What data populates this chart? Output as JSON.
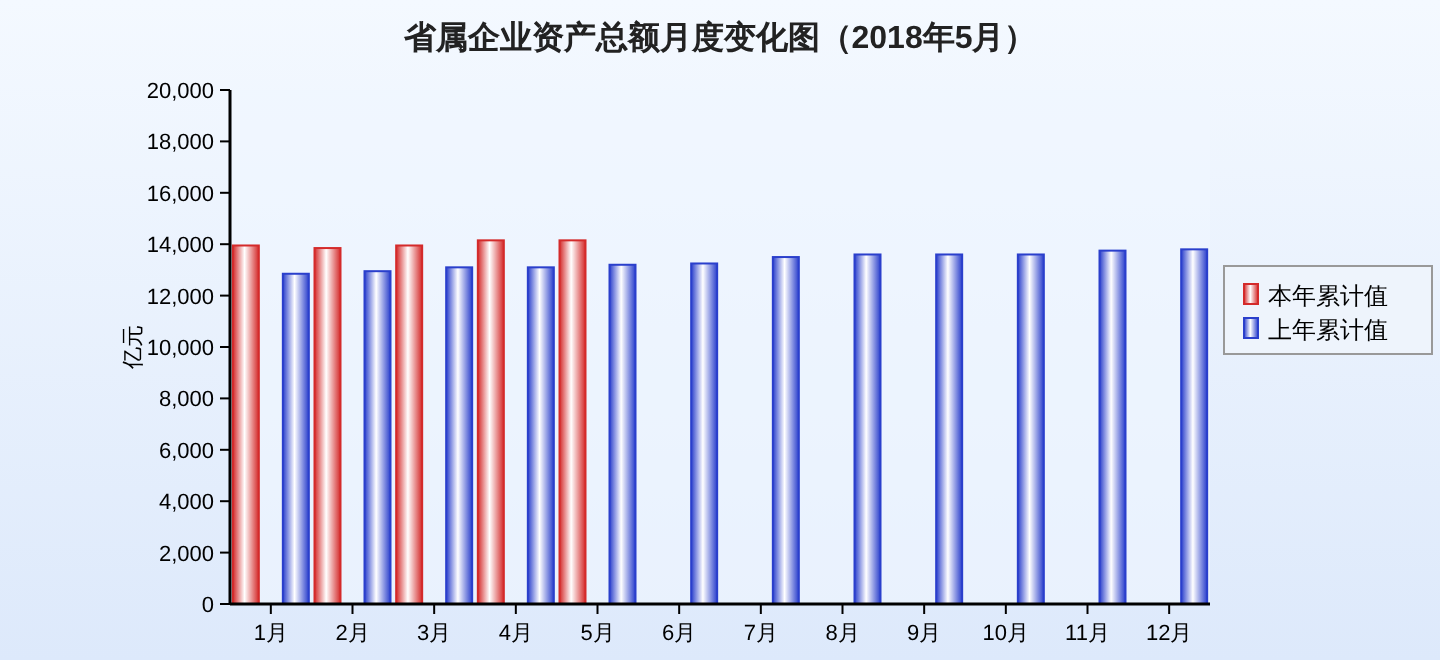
{
  "chart_data": {
    "type": "bar",
    "title": "省属企业资产总额月度变化图（2018年5月）",
    "ylabel": "亿元",
    "categories": [
      "1月",
      "2月",
      "3月",
      "4月",
      "5月",
      "6月",
      "7月",
      "8月",
      "9月",
      "10月",
      "11月",
      "12月"
    ],
    "series": [
      {
        "name": "本年累计值",
        "color": "#d42a2a",
        "values": [
          13950,
          13850,
          13950,
          14150,
          14150,
          null,
          null,
          null,
          null,
          null,
          null,
          null
        ]
      },
      {
        "name": "上年累计值",
        "color": "#2a3fcc",
        "values": [
          12850,
          12950,
          13100,
          13100,
          13200,
          13250,
          13500,
          13600,
          13600,
          13600,
          13750,
          13800
        ]
      }
    ],
    "ylim": [
      0,
      20000
    ],
    "yticks": [
      0,
      {
        "value": 2000,
        "label": "2,000"
      },
      {
        "value": 4000,
        "label": "4,000"
      },
      {
        "value": 6000,
        "label": "6,000"
      },
      {
        "value": 8000,
        "label": "8,000"
      },
      {
        "value": 10000,
        "label": "10,000"
      },
      {
        "value": 12000,
        "label": "12,000"
      },
      {
        "value": 14000,
        "label": "14,000"
      },
      {
        "value": 16000,
        "label": "16,000"
      },
      {
        "value": 18000,
        "label": "18,000"
      },
      {
        "value": 20000,
        "label": "20,000"
      }
    ],
    "legend": "right",
    "grid": false
  }
}
